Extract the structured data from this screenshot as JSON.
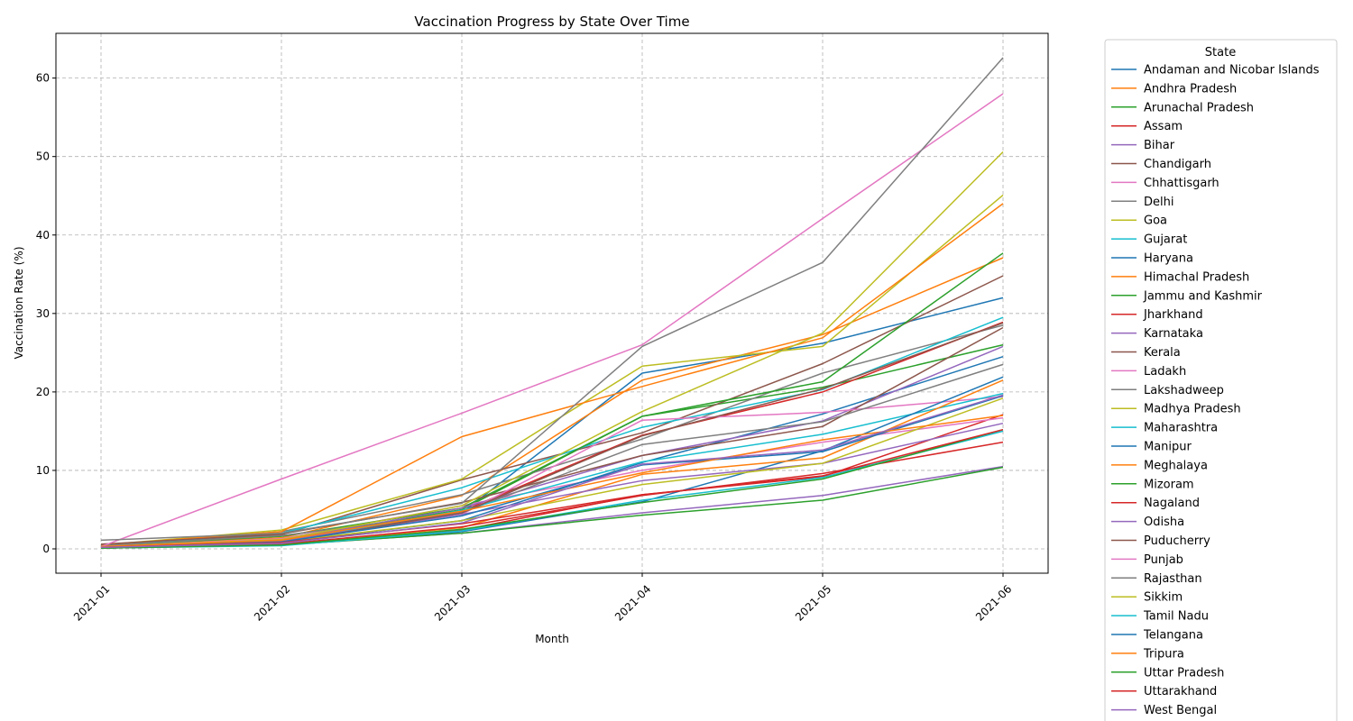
{
  "chart_data": {
    "type": "line",
    "title": "Vaccination Progress by State Over Time",
    "xlabel": "Month",
    "ylabel": "Vaccination Rate (%)",
    "x": [
      "2021-01",
      "2021-02",
      "2021-03",
      "2021-04",
      "2021-05",
      "2021-06"
    ],
    "ylim": [
      -3.1,
      65.7
    ],
    "yticks": [
      0,
      10,
      20,
      30,
      40,
      50,
      60
    ],
    "grid": true,
    "legend": {
      "title": "State",
      "placement": "outside-right"
    },
    "series": [
      {
        "name": "Andaman and Nicobar Islands",
        "color": "#1f77b4",
        "values": [
          0.2,
          1.0,
          4.6,
          22.4,
          26.2,
          32.0
        ]
      },
      {
        "name": "Andhra Pradesh",
        "color": "#ff7f0e",
        "values": [
          0.5,
          1.4,
          6.8,
          21.5,
          27.3,
          37.1
        ]
      },
      {
        "name": "Arunachal Pradesh",
        "color": "#2ca02c",
        "values": [
          0.3,
          1.2,
          5.0,
          16.9,
          20.6,
          26.0
        ]
      },
      {
        "name": "Assam",
        "color": "#d62728",
        "values": [
          0.1,
          0.6,
          2.4,
          6.9,
          9.2,
          17.1
        ]
      },
      {
        "name": "Bihar",
        "color": "#9467bd",
        "values": [
          0.1,
          0.5,
          2.0,
          4.6,
          6.8,
          10.5
        ]
      },
      {
        "name": "Chandigarh",
        "color": "#8c564b",
        "values": [
          0.4,
          1.8,
          8.8,
          14.8,
          23.6,
          34.8
        ]
      },
      {
        "name": "Chhattisgarh",
        "color": "#e377c2",
        "values": [
          0.3,
          1.3,
          5.5,
          10.0,
          13.6,
          16.7
        ]
      },
      {
        "name": "Delhi",
        "color": "#7f7f7f",
        "values": [
          0.5,
          2.2,
          6.9,
          14.0,
          22.4,
          28.5
        ]
      },
      {
        "name": "Goa",
        "color": "#bcbd22",
        "values": [
          0.5,
          2.4,
          8.9,
          23.3,
          25.8,
          45.1
        ]
      },
      {
        "name": "Gujarat",
        "color": "#17becf",
        "values": [
          0.4,
          2.0,
          7.8,
          15.5,
          20.3,
          29.5
        ]
      },
      {
        "name": "Haryana",
        "color": "#1f77b4",
        "values": [
          0.2,
          0.8,
          3.6,
          11.0,
          17.2,
          24.5
        ]
      },
      {
        "name": "Himachal Pradesh",
        "color": "#ff7f0e",
        "values": [
          0.5,
          2.2,
          14.3,
          20.7,
          26.9,
          44.0
        ]
      },
      {
        "name": "Jammu and Kashmir",
        "color": "#2ca02c",
        "values": [
          0.4,
          1.6,
          5.2,
          16.9,
          21.3,
          37.7
        ]
      },
      {
        "name": "Jharkhand",
        "color": "#d62728",
        "values": [
          0.2,
          1.0,
          4.8,
          14.5,
          20.0,
          28.9
        ]
      },
      {
        "name": "Karnataka",
        "color": "#9467bd",
        "values": [
          0.3,
          1.1,
          5.2,
          11.9,
          16.3,
          25.8
        ]
      },
      {
        "name": "Kerala",
        "color": "#8c564b",
        "values": [
          0.6,
          1.9,
          5.9,
          11.9,
          15.6,
          28.2
        ]
      },
      {
        "name": "Ladakh",
        "color": "#e377c2",
        "values": [
          0.2,
          0.9,
          4.4,
          16.4,
          17.4,
          19.4
        ]
      },
      {
        "name": "Lakshadweep",
        "color": "#7f7f7f",
        "values": [
          0.4,
          1.7,
          4.6,
          13.3,
          16.2,
          23.5
        ]
      },
      {
        "name": "Madhya Pradesh",
        "color": "#bcbd22",
        "values": [
          0.3,
          1.2,
          5.5,
          17.5,
          27.5,
          50.6
        ]
      },
      {
        "name": "Maharashtra",
        "color": "#17becf",
        "values": [
          0.2,
          0.9,
          4.9,
          11.1,
          14.6,
          19.8
        ]
      },
      {
        "name": "Manipur",
        "color": "#1f77b4",
        "values": [
          0.1,
          0.5,
          2.2,
          6.0,
          12.5,
          21.9
        ]
      },
      {
        "name": "Meghalaya",
        "color": "#ff7f0e",
        "values": [
          0.1,
          0.6,
          2.7,
          9.5,
          11.6,
          21.5
        ]
      },
      {
        "name": "Mizoram",
        "color": "#2ca02c",
        "values": [
          0.1,
          0.5,
          2.0,
          4.3,
          6.2,
          10.4
        ]
      },
      {
        "name": "Nagaland",
        "color": "#d62728",
        "values": [
          0.1,
          0.6,
          2.8,
          6.8,
          9.6,
          13.6
        ]
      },
      {
        "name": "Odisha",
        "color": "#9467bd",
        "values": [
          0.3,
          1.0,
          4.4,
          8.7,
          10.9,
          16.0
        ]
      },
      {
        "name": "Puducherry",
        "color": "#8c564b",
        "values": [
          0.2,
          0.8,
          4.6,
          14.4,
          20.4,
          28.8
        ]
      },
      {
        "name": "Punjab",
        "color": "#e377c2",
        "values": [
          0.3,
          8.9,
          17.3,
          26.0,
          42.1,
          58.0
        ]
      },
      {
        "name": "Rajasthan",
        "color": "#7f7f7f",
        "values": [
          1.1,
          2.0,
          5.8,
          25.8,
          36.5,
          62.6
        ]
      },
      {
        "name": "Sikkim",
        "color": "#bcbd22",
        "values": [
          0.2,
          0.9,
          3.6,
          8.2,
          10.9,
          19.2
        ]
      },
      {
        "name": "Tamil Nadu",
        "color": "#17becf",
        "values": [
          0.1,
          0.4,
          2.3,
          6.2,
          9.1,
          15.0
        ]
      },
      {
        "name": "Telangana",
        "color": "#1f77b4",
        "values": [
          0.2,
          0.9,
          4.2,
          10.7,
          12.4,
          19.5
        ]
      },
      {
        "name": "Tripura",
        "color": "#ff7f0e",
        "values": [
          0.3,
          1.1,
          4.8,
          9.7,
          13.9,
          17.0
        ]
      },
      {
        "name": "Uttar Pradesh",
        "color": "#2ca02c",
        "values": [
          0.1,
          0.5,
          2.5,
          5.9,
          8.9,
          15.2
        ]
      },
      {
        "name": "Uttarakhand",
        "color": "#d62728",
        "values": [
          0.2,
          0.8,
          3.2,
          6.9,
          9.3,
          15.2
        ]
      },
      {
        "name": "West Bengal",
        "color": "#9467bd",
        "values": [
          0.2,
          0.7,
          3.3,
          10.8,
          12.6,
          19.6
        ]
      }
    ]
  }
}
